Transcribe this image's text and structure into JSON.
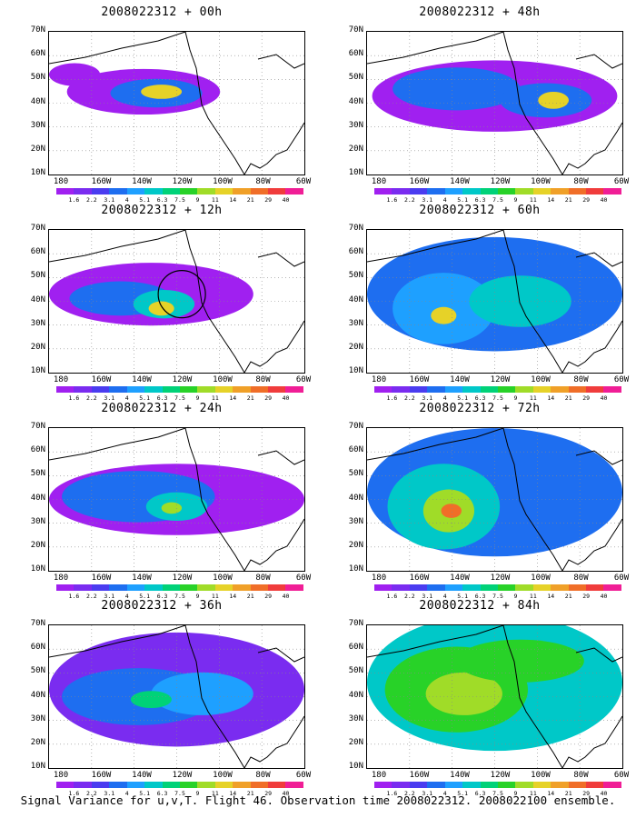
{
  "panels": [
    {
      "title": "2008022312 + 00h"
    },
    {
      "title": "2008022312 + 48h"
    },
    {
      "title": "2008022312 + 12h"
    },
    {
      "title": "2008022312 + 60h"
    },
    {
      "title": "2008022312 + 24h"
    },
    {
      "title": "2008022312 + 72h"
    },
    {
      "title": "2008022312 + 36h"
    },
    {
      "title": "2008022312 + 84h"
    }
  ],
  "axis": {
    "y_labels": [
      "70N",
      "60N",
      "50N",
      "40N",
      "30N",
      "20N",
      "10N"
    ],
    "x_labels": [
      "180",
      "160W",
      "140W",
      "120W",
      "100W",
      "80W",
      "60W"
    ]
  },
  "colorbar": {
    "labels": [
      "1.6",
      "2.2",
      "3.1",
      "4",
      "5.1",
      "6.3",
      "7.5",
      "9",
      "11",
      "14",
      "21",
      "29",
      "40"
    ],
    "colors": [
      "#a020f0",
      "#7a2cf0",
      "#4a3cf0",
      "#1e6ef0",
      "#1ea0ff",
      "#00c8c8",
      "#00d278",
      "#28d228",
      "#a0dc28",
      "#e6d228",
      "#f0a028",
      "#f06e28",
      "#f03c3c",
      "#f01e96"
    ]
  },
  "caption": "Signal Variance for u,v,T. Flight 46. Observation time 2008022312. 2008022100 ensemble."
}
